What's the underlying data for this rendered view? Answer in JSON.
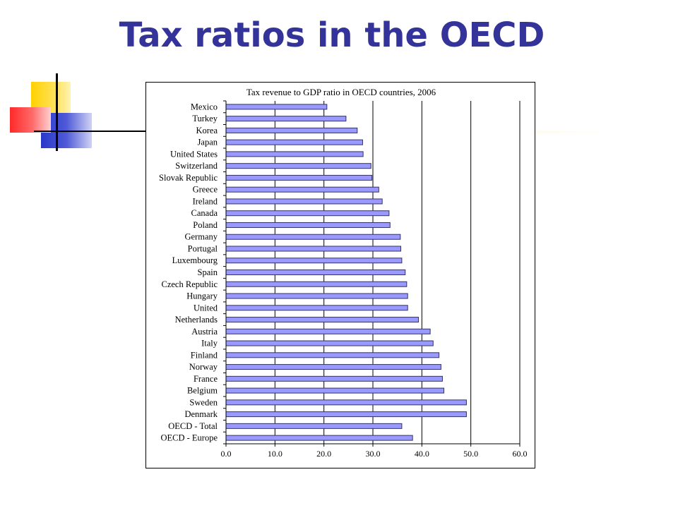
{
  "slide": {
    "title": "Tax ratios in the OECD"
  },
  "colors": {
    "title": "#333399",
    "bar_fill": "#9999ff",
    "bar_stroke": "#333366"
  },
  "chart_data": {
    "type": "bar",
    "orientation": "horizontal",
    "title": "Tax revenue to GDP ratio in OECD countries, 2006",
    "xlabel": "",
    "ylabel": "",
    "xlim": [
      0,
      60
    ],
    "xticks": [
      "0.0",
      "10.0",
      "20.0",
      "30.0",
      "40.0",
      "50.0",
      "60.0"
    ],
    "grid": "vertical lines at major ticks",
    "categories": [
      "Mexico",
      "Turkey",
      "Korea",
      "Japan",
      "United States",
      "Switzerland",
      "Slovak Republic",
      "Greece",
      "Ireland",
      "Canada",
      "Poland",
      "Germany",
      "Portugal",
      "Luxembourg",
      "Spain",
      "Czech Republic",
      "Hungary",
      "United",
      "Netherlands",
      "Austria",
      "Italy",
      "Finland",
      "Norway",
      "France",
      "Belgium",
      "Sweden",
      "Denmark",
      "OECD - Total",
      "OECD - Europe"
    ],
    "values": [
      20.6,
      24.5,
      26.8,
      27.9,
      28.0,
      29.6,
      29.8,
      31.2,
      31.9,
      33.3,
      33.5,
      35.6,
      35.7,
      35.9,
      36.6,
      36.9,
      37.1,
      37.1,
      39.3,
      41.7,
      42.3,
      43.5,
      43.9,
      44.2,
      44.5,
      49.1,
      49.1,
      35.9,
      38.1
    ]
  }
}
